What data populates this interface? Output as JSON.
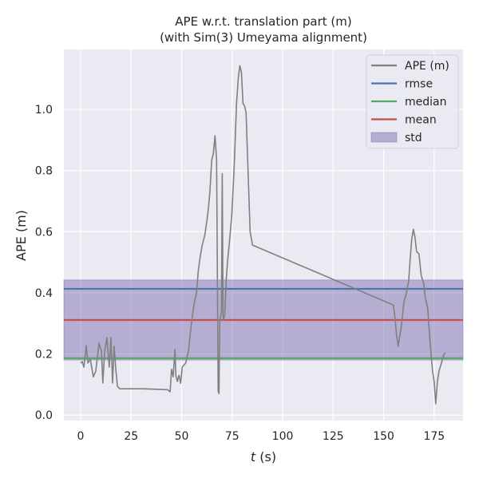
{
  "chart_data": {
    "type": "line",
    "title": [
      "APE w.r.t. translation part (m)",
      "(with Sim(3) Umeyama alignment)"
    ],
    "xlabel_var": "t",
    "xlabel_unit": " (s)",
    "ylabel": "APE (m)",
    "xlim": [
      -8.3,
      189.3
    ],
    "ylim": [
      -0.018,
      1.196
    ],
    "xticks": [
      0,
      25,
      50,
      75,
      100,
      125,
      150,
      175
    ],
    "yticks": [
      0.0,
      0.2,
      0.4,
      0.6,
      0.8,
      1.0
    ],
    "ytick_labels": [
      "0.0",
      "0.2",
      "0.4",
      "0.6",
      "0.8",
      "1.0"
    ],
    "grid": true,
    "legend_position": "top-right",
    "colors": {
      "ape": "#808080",
      "rmse": "#4c72b0",
      "median": "#55a868",
      "mean": "#c44e52",
      "std": "#8172b2",
      "bg": "#eaeaf2"
    },
    "stats": {
      "rmse": 0.413,
      "median": 0.186,
      "mean": 0.311,
      "std": 0.131
    },
    "legend": [
      "APE (m)",
      "rmse",
      "median",
      "mean",
      "std"
    ],
    "series": [
      {
        "name": "APE (m)",
        "t": [
          0,
          0.8,
          1.6,
          2.8,
          3.6,
          4.8,
          6.3,
          7.5,
          9.1,
          10.3,
          11,
          11.9,
          13,
          14.2,
          15,
          15.8,
          16.6,
          17.4,
          17.8,
          18.2,
          19.4,
          31,
          43,
          44.3,
          45,
          45.8,
          46.7,
          47.1,
          47.9,
          48.7,
          49.5,
          50.3,
          52,
          53.4,
          55,
          56.2,
          57.4,
          58.2,
          59,
          60.2,
          61.4,
          62.6,
          63.3,
          64,
          64.9,
          65.7,
          66.5,
          67.3,
          68.1,
          68.5,
          68.9,
          69.7,
          70.1,
          70.5,
          71.3,
          72.1,
          72.8,
          73.6,
          74.8,
          76,
          77.2,
          78,
          78.8,
          79.6,
          80.4,
          81.2,
          81.9,
          83.9,
          85.1,
          154.8,
          155.6,
          156.4,
          157.2,
          158,
          158.7,
          160,
          161.2,
          162.4,
          163,
          163.9,
          164.7,
          165.5,
          166.3,
          167.5,
          168.6,
          169.8,
          170.6,
          171.8,
          173,
          174.2,
          175,
          175.8,
          176.6,
          177.4,
          178.6,
          179.7,
          180.5
        ],
        "ape": [
          0.17,
          0.175,
          0.157,
          0.227,
          0.17,
          0.183,
          0.125,
          0.144,
          0.235,
          0.209,
          0.105,
          0.209,
          0.253,
          0.157,
          0.253,
          0.105,
          0.225,
          0.151,
          0.125,
          0.094,
          0.086,
          0.086,
          0.083,
          0.076,
          0.15,
          0.125,
          0.214,
          0.13,
          0.11,
          0.13,
          0.104,
          0.157,
          0.17,
          0.21,
          0.31,
          0.365,
          0.4,
          0.47,
          0.51,
          0.556,
          0.587,
          0.64,
          0.68,
          0.73,
          0.835,
          0.854,
          0.914,
          0.836,
          0.078,
          0.07,
          0.31,
          0.339,
          0.79,
          0.31,
          0.325,
          0.443,
          0.509,
          0.56,
          0.653,
          0.81,
          1.02,
          1.1,
          1.143,
          1.122,
          1.02,
          1.01,
          0.99,
          0.6,
          0.556,
          0.36,
          0.319,
          0.26,
          0.225,
          0.261,
          0.287,
          0.37,
          0.397,
          0.439,
          0.5,
          0.574,
          0.608,
          0.582,
          0.535,
          0.527,
          0.457,
          0.43,
          0.384,
          0.35,
          0.235,
          0.144,
          0.11,
          0.037,
          0.11,
          0.144,
          0.17,
          0.196,
          0.204
        ]
      }
    ]
  }
}
